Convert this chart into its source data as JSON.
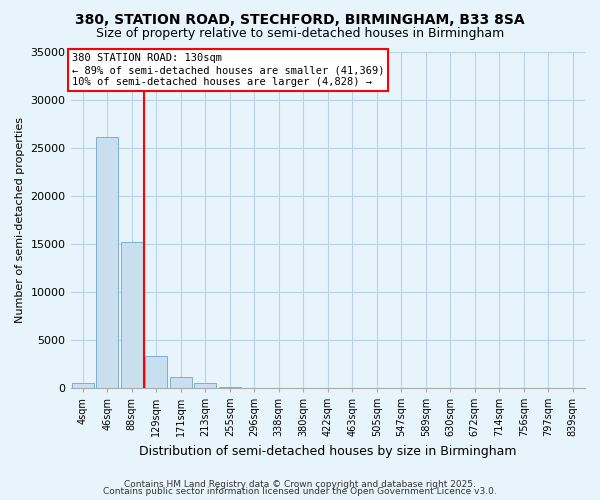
{
  "title1": "380, STATION ROAD, STECHFORD, BIRMINGHAM, B33 8SA",
  "title2": "Size of property relative to semi-detached houses in Birmingham",
  "xlabel": "Distribution of semi-detached houses by size in Birmingham",
  "ylabel": "Number of semi-detached properties",
  "bin_labels": [
    "4sqm",
    "46sqm",
    "88sqm",
    "129sqm",
    "171sqm",
    "213sqm",
    "255sqm",
    "296sqm",
    "338sqm",
    "380sqm",
    "422sqm",
    "463sqm",
    "505sqm",
    "547sqm",
    "589sqm",
    "630sqm",
    "672sqm",
    "714sqm",
    "756sqm",
    "797sqm",
    "839sqm"
  ],
  "bin_values": [
    500,
    26100,
    15200,
    3250,
    1150,
    500,
    50,
    0,
    0,
    0,
    0,
    0,
    0,
    0,
    0,
    0,
    0,
    0,
    0,
    0,
    0
  ],
  "bar_color": "#c9dff0",
  "bar_edge_color": "#7ab0d4",
  "background_color": "#e8f4fc",
  "grid_color": "#b8d0e8",
  "vline_color": "red",
  "annotation_title": "380 STATION ROAD: 130sqm",
  "annotation_line1": "← 89% of semi-detached houses are smaller (41,369)",
  "annotation_line2": "10% of semi-detached houses are larger (4,828) →",
  "annotation_box_color": "#ffffff",
  "annotation_box_edge": "red",
  "ylim": [
    0,
    35000
  ],
  "yticks": [
    0,
    5000,
    10000,
    15000,
    20000,
    25000,
    30000,
    35000
  ],
  "footer1": "Contains HM Land Registry data © Crown copyright and database right 2025.",
  "footer2": "Contains public sector information licensed under the Open Government Licence v3.0."
}
